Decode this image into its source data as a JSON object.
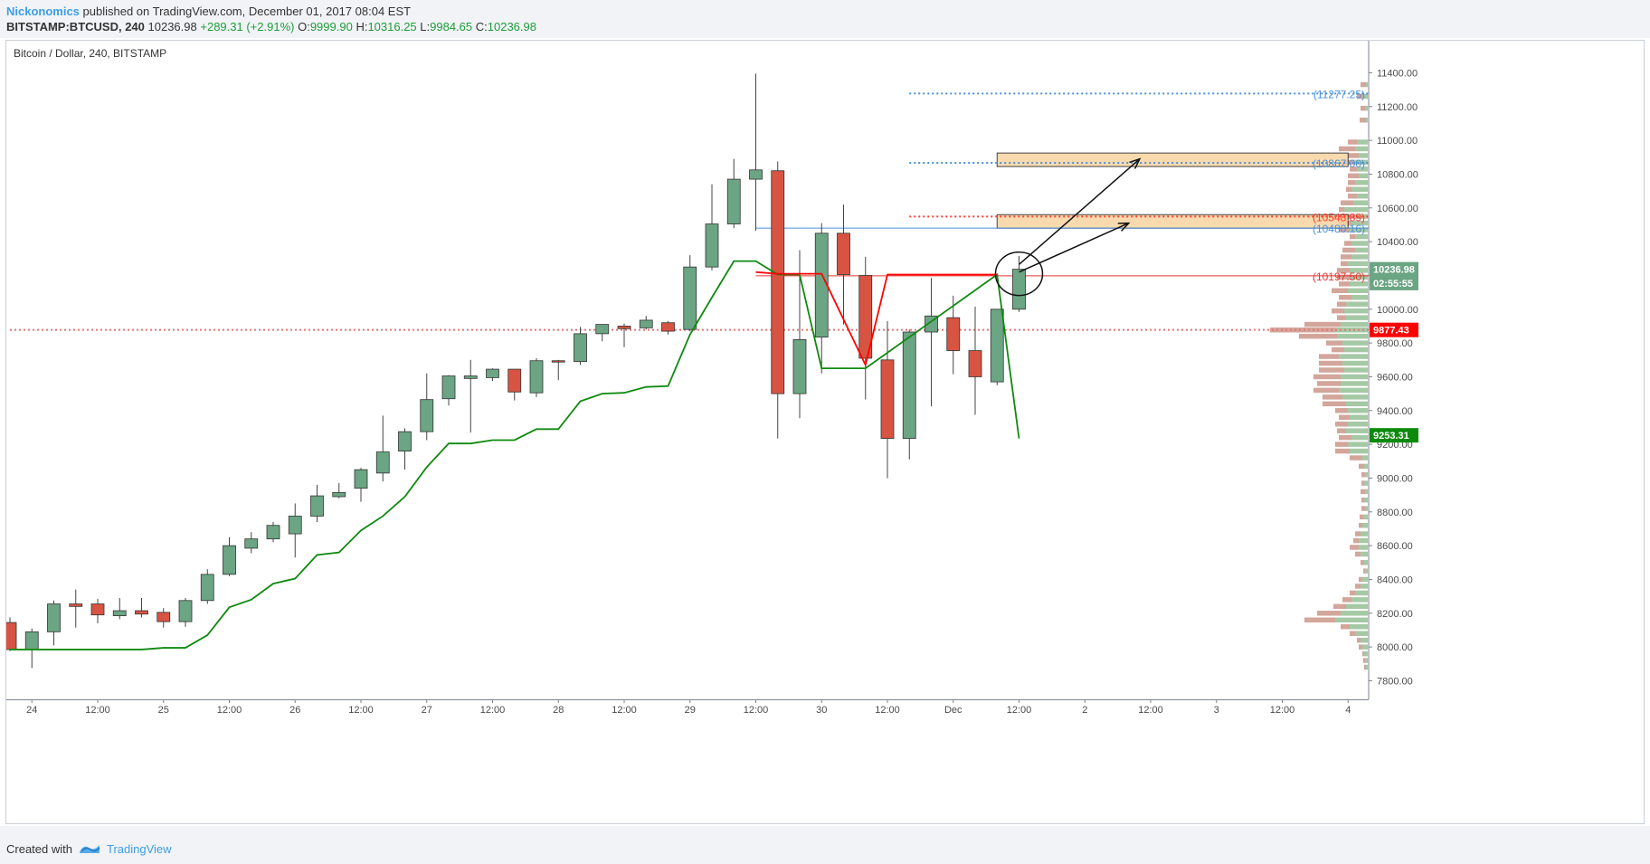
{
  "header": {
    "author": "Nickonomics",
    "published": " published on TradingView.com, December 01, 2017 08:04 EST",
    "symbol": "BITSTAMP:BTCUSD, 240",
    "last": "10236.98",
    "change": "+289.31 (+2.91%)",
    "o_label": "O:",
    "o_value": "9999.90",
    "h_label": "H:",
    "h_value": "10316.25",
    "l_label": "L:",
    "l_value": "9984.65",
    "c_label": "C:",
    "c_value": "10236.98"
  },
  "footer": {
    "created_with": "Created with",
    "brand": "TradingView"
  },
  "colors": {
    "up": "#6ba583",
    "down": "#d75442",
    "trail": "#0f8a0f",
    "stop": "#ff0000",
    "blue_level": "#5b9bd5",
    "zone_fill": "#f9d4a0",
    "volume_up": "#8fbc8f",
    "volume_down": "#c08070"
  },
  "chart_data": {
    "type": "candlestick",
    "title": "Bitcoin / Dollar, 240, BITSTAMP",
    "y_ticks": [
      "11400.00",
      "11200.00",
      "11000.00",
      "10800.00",
      "10600.00",
      "10400.00",
      "10200.00",
      "10000.00",
      "9800.00",
      "9600.00",
      "9400.00",
      "9200.00",
      "9000.00",
      "8800.00",
      "8600.00",
      "8400.00",
      "8200.00",
      "8000.00",
      "7800.00"
    ],
    "ylim": [
      7690,
      11590
    ],
    "x_ticks": [
      "24",
      "12:00",
      "25",
      "12:00",
      "26",
      "12:00",
      "27",
      "12:00",
      "28",
      "12:00",
      "29",
      "12:00",
      "30",
      "12:00",
      "Dec",
      "12:00",
      "2",
      "12:00",
      "3",
      "12:00",
      "4"
    ],
    "x_tick_start_bar": 1,
    "x_tick_step_bars": 3,
    "bar_count": 62,
    "candles": [
      {
        "o": 8145,
        "h": 8175,
        "l": 7975,
        "c": 7985
      },
      {
        "o": 7985,
        "h": 8110,
        "l": 7875,
        "c": 8090
      },
      {
        "o": 8090,
        "h": 8275,
        "l": 8010,
        "c": 8255
      },
      {
        "o": 8255,
        "h": 8340,
        "l": 8115,
        "c": 8240
      },
      {
        "o": 8255,
        "h": 8285,
        "l": 8140,
        "c": 8190
      },
      {
        "o": 8185,
        "h": 8290,
        "l": 8165,
        "c": 8215
      },
      {
        "o": 8215,
        "h": 8290,
        "l": 8175,
        "c": 8195
      },
      {
        "o": 8205,
        "h": 8230,
        "l": 8115,
        "c": 8150
      },
      {
        "o": 8150,
        "h": 8290,
        "l": 8120,
        "c": 8275
      },
      {
        "o": 8275,
        "h": 8460,
        "l": 8255,
        "c": 8430
      },
      {
        "o": 8430,
        "h": 8650,
        "l": 8420,
        "c": 8600
      },
      {
        "o": 8585,
        "h": 8680,
        "l": 8555,
        "c": 8640
      },
      {
        "o": 8640,
        "h": 8740,
        "l": 8620,
        "c": 8720
      },
      {
        "o": 8670,
        "h": 8850,
        "l": 8530,
        "c": 8775
      },
      {
        "o": 8775,
        "h": 8960,
        "l": 8740,
        "c": 8895
      },
      {
        "o": 8890,
        "h": 8970,
        "l": 8880,
        "c": 8915
      },
      {
        "o": 8940,
        "h": 9060,
        "l": 8860,
        "c": 9050
      },
      {
        "o": 9030,
        "h": 9370,
        "l": 8980,
        "c": 9155
      },
      {
        "o": 9160,
        "h": 9295,
        "l": 9050,
        "c": 9275
      },
      {
        "o": 9275,
        "h": 9620,
        "l": 9225,
        "c": 9465
      },
      {
        "o": 9470,
        "h": 9610,
        "l": 9430,
        "c": 9605
      },
      {
        "o": 9590,
        "h": 9700,
        "l": 9270,
        "c": 9605
      },
      {
        "o": 9595,
        "h": 9650,
        "l": 9575,
        "c": 9645
      },
      {
        "o": 9645,
        "h": 9645,
        "l": 9460,
        "c": 9510
      },
      {
        "o": 9505,
        "h": 9710,
        "l": 9480,
        "c": 9695
      },
      {
        "o": 9695,
        "h": 9700,
        "l": 9580,
        "c": 9690
      },
      {
        "o": 9690,
        "h": 9895,
        "l": 9670,
        "c": 9855
      },
      {
        "o": 9855,
        "h": 9910,
        "l": 9810,
        "c": 9910
      },
      {
        "o": 9900,
        "h": 9915,
        "l": 9775,
        "c": 9885
      },
      {
        "o": 9890,
        "h": 9960,
        "l": 9880,
        "c": 9935
      },
      {
        "o": 9920,
        "h": 9930,
        "l": 9850,
        "c": 9870
      },
      {
        "o": 9880,
        "h": 10320,
        "l": 9870,
        "c": 10250
      },
      {
        "o": 10250,
        "h": 10740,
        "l": 10230,
        "c": 10505
      },
      {
        "o": 10505,
        "h": 10890,
        "l": 10480,
        "c": 10770
      },
      {
        "o": 10770,
        "h": 11395,
        "l": 10465,
        "c": 10825
      },
      {
        "o": 10820,
        "h": 10875,
        "l": 9235,
        "c": 9500
      },
      {
        "o": 9500,
        "h": 10350,
        "l": 9355,
        "c": 9820
      },
      {
        "o": 9835,
        "h": 10510,
        "l": 9620,
        "c": 10450
      },
      {
        "o": 10450,
        "h": 10620,
        "l": 9910,
        "c": 10205
      },
      {
        "o": 10200,
        "h": 10310,
        "l": 9465,
        "c": 9710
      },
      {
        "o": 9700,
        "h": 9930,
        "l": 9000,
        "c": 9235
      },
      {
        "o": 9235,
        "h": 9880,
        "l": 9110,
        "c": 9865
      },
      {
        "o": 9865,
        "h": 10185,
        "l": 9425,
        "c": 9960
      },
      {
        "o": 9950,
        "h": 10080,
        "l": 9615,
        "c": 9755
      },
      {
        "o": 9755,
        "h": 10015,
        "l": 9375,
        "c": 9600
      },
      {
        "o": 9570,
        "h": 9985,
        "l": 9550,
        "c": 10000
      },
      {
        "o": 10000,
        "h": 10316,
        "l": 9984,
        "c": 10237
      }
    ],
    "trailing_stop_long": [
      [
        0,
        7985
      ],
      [
        1,
        7985
      ],
      [
        2,
        7985
      ],
      [
        3,
        7985
      ],
      [
        4,
        7985
      ],
      [
        5,
        7985
      ],
      [
        6,
        7985
      ],
      [
        7,
        7995
      ],
      [
        8,
        7995
      ],
      [
        9,
        8070
      ],
      [
        10,
        8235
      ],
      [
        11,
        8280
      ],
      [
        12,
        8375
      ],
      [
        13,
        8405
      ],
      [
        14,
        8545
      ],
      [
        15,
        8560
      ],
      [
        16,
        8690
      ],
      [
        17,
        8775
      ],
      [
        18,
        8890
      ],
      [
        19,
        9065
      ],
      [
        20,
        9205
      ],
      [
        21,
        9205
      ],
      [
        22,
        9225
      ],
      [
        23,
        9225
      ],
      [
        24,
        9290
      ],
      [
        25,
        9290
      ],
      [
        26,
        9455
      ],
      [
        27,
        9500
      ],
      [
        28,
        9505
      ],
      [
        29,
        9540
      ],
      [
        30,
        9545
      ],
      [
        31,
        9850
      ],
      [
        32,
        10070
      ],
      [
        33,
        10285
      ],
      [
        34,
        10285
      ],
      [
        35,
        10205
      ],
      [
        36,
        10205
      ],
      [
        37,
        9650
      ],
      [
        38,
        9650
      ],
      [
        39,
        9650
      ],
      [
        45,
        10205
      ],
      [
        46,
        9235
      ]
    ],
    "trailing_stop_short": [
      [
        34,
        10220
      ],
      [
        35,
        10210
      ],
      [
        37,
        10210
      ],
      [
        39,
        9670
      ],
      [
        40,
        10205
      ],
      [
        45,
        10205
      ]
    ],
    "levels": [
      {
        "label": "(11277.25)",
        "value": 11277.25,
        "from_bar": 41,
        "color": "#4a90d9",
        "style": "dotted"
      },
      {
        "label": "(10867.00)",
        "value": 10867,
        "from_bar": 41,
        "color": "#4a90d9",
        "style": "dotted"
      },
      {
        "label": "(10548.89)",
        "value": 10548.89,
        "from_bar": 41,
        "color": "#ff3b30",
        "style": "dotted"
      },
      {
        "label": "(10480.16)",
        "value": 10480.16,
        "from_bar": 34,
        "color": "#4a90d9",
        "style": "solid"
      },
      {
        "label": "(10197.50)",
        "value": 10197.5,
        "from_bar": 34,
        "color": "#e53935",
        "style": "solid"
      },
      {
        "label": "",
        "value": 9877.43,
        "from_bar": 0,
        "color": "#e57373",
        "style": "dotted"
      }
    ],
    "zones": [
      {
        "top": 10925,
        "bottom": 10845,
        "from_bar": 45,
        "to_bar": 61
      },
      {
        "top": 10560,
        "bottom": 10480,
        "from_bar": 45,
        "to_bar": 61
      }
    ],
    "arrows": [
      {
        "x1": 46.0,
        "y1": 10265,
        "x2": 51.5,
        "y2": 10890
      },
      {
        "x1": 46.0,
        "y1": 10220,
        "x2": 51.0,
        "y2": 10510
      }
    ],
    "circle": {
      "bar": 46,
      "value": 10210
    },
    "price_tags": [
      {
        "text": "10236.98",
        "value": 10236.98,
        "color": "#6ba583"
      },
      {
        "text": "02:55:55",
        "value": 10155,
        "color": "#6ba583"
      },
      {
        "text": "9877.43",
        "value": 9877.43,
        "color": "#ff0000"
      },
      {
        "text": "9253.31",
        "value": 9253.31,
        "color": "#0c8a0c"
      }
    ],
    "volume_profile": [
      {
        "p": 11330,
        "u": 2,
        "d": 6
      },
      {
        "p": 11260,
        "u": 4,
        "d": 8
      },
      {
        "p": 11190,
        "u": 3,
        "d": 5
      },
      {
        "p": 11120,
        "u": 2,
        "d": 7
      },
      {
        "p": 10990,
        "u": 12,
        "d": 10
      },
      {
        "p": 10950,
        "u": 14,
        "d": 18
      },
      {
        "p": 10910,
        "u": 10,
        "d": 12
      },
      {
        "p": 10870,
        "u": 16,
        "d": 14
      },
      {
        "p": 10830,
        "u": 12,
        "d": 8
      },
      {
        "p": 10790,
        "u": 10,
        "d": 12
      },
      {
        "p": 10750,
        "u": 14,
        "d": 8
      },
      {
        "p": 10710,
        "u": 18,
        "d": 6
      },
      {
        "p": 10670,
        "u": 12,
        "d": 10
      },
      {
        "p": 10630,
        "u": 16,
        "d": 14
      },
      {
        "p": 10590,
        "u": 26,
        "d": 6
      },
      {
        "p": 10550,
        "u": 14,
        "d": 16
      },
      {
        "p": 10510,
        "u": 18,
        "d": 14
      },
      {
        "p": 10470,
        "u": 20,
        "d": 12
      },
      {
        "p": 10430,
        "u": 14,
        "d": 6
      },
      {
        "p": 10390,
        "u": 18,
        "d": 8
      },
      {
        "p": 10350,
        "u": 14,
        "d": 14
      },
      {
        "p": 10310,
        "u": 18,
        "d": 12
      },
      {
        "p": 10270,
        "u": 22,
        "d": 8
      },
      {
        "p": 10230,
        "u": 20,
        "d": 14
      },
      {
        "p": 10190,
        "u": 18,
        "d": 16
      },
      {
        "p": 10150,
        "u": 20,
        "d": 12
      },
      {
        "p": 10110,
        "u": 22,
        "d": 18
      },
      {
        "p": 10070,
        "u": 18,
        "d": 14
      },
      {
        "p": 10030,
        "u": 24,
        "d": 10
      },
      {
        "p": 9990,
        "u": 26,
        "d": 14
      },
      {
        "p": 9950,
        "u": 24,
        "d": 10
      },
      {
        "p": 9910,
        "u": 30,
        "d": 40
      },
      {
        "p": 9877,
        "u": 36,
        "d": 72
      },
      {
        "p": 9840,
        "u": 34,
        "d": 42
      },
      {
        "p": 9800,
        "u": 28,
        "d": 18
      },
      {
        "p": 9760,
        "u": 26,
        "d": 14
      },
      {
        "p": 9720,
        "u": 32,
        "d": 22
      },
      {
        "p": 9680,
        "u": 28,
        "d": 26
      },
      {
        "p": 9640,
        "u": 26,
        "d": 28
      },
      {
        "p": 9600,
        "u": 30,
        "d": 30
      },
      {
        "p": 9560,
        "u": 30,
        "d": 26
      },
      {
        "p": 9520,
        "u": 32,
        "d": 28
      },
      {
        "p": 9480,
        "u": 28,
        "d": 22
      },
      {
        "p": 9440,
        "u": 24,
        "d": 26
      },
      {
        "p": 9400,
        "u": 22,
        "d": 14
      },
      {
        "p": 9360,
        "u": 20,
        "d": 12
      },
      {
        "p": 9320,
        "u": 22,
        "d": 14
      },
      {
        "p": 9280,
        "u": 24,
        "d": 10
      },
      {
        "p": 9240,
        "u": 18,
        "d": 14
      },
      {
        "p": 9200,
        "u": 22,
        "d": 14
      },
      {
        "p": 9160,
        "u": 20,
        "d": 16
      },
      {
        "p": 9120,
        "u": 6,
        "d": 14
      },
      {
        "p": 9070,
        "u": 4,
        "d": 6
      },
      {
        "p": 9020,
        "u": 3,
        "d": 4
      },
      {
        "p": 8970,
        "u": 4,
        "d": 3
      },
      {
        "p": 8920,
        "u": 3,
        "d": 5
      },
      {
        "p": 8870,
        "u": 4,
        "d": 3
      },
      {
        "p": 8820,
        "u": 3,
        "d": 4
      },
      {
        "p": 8770,
        "u": 5,
        "d": 4
      },
      {
        "p": 8720,
        "u": 6,
        "d": 4
      },
      {
        "p": 8670,
        "u": 8,
        "d": 6
      },
      {
        "p": 8630,
        "u": 10,
        "d": 6
      },
      {
        "p": 8590,
        "u": 10,
        "d": 10
      },
      {
        "p": 8550,
        "u": 8,
        "d": 6
      },
      {
        "p": 8500,
        "u": 4,
        "d": 4
      },
      {
        "p": 8450,
        "u": 3,
        "d": 2
      },
      {
        "p": 8400,
        "u": 6,
        "d": 4
      },
      {
        "p": 8360,
        "u": 8,
        "d": 6
      },
      {
        "p": 8320,
        "u": 14,
        "d": 6
      },
      {
        "p": 8280,
        "u": 18,
        "d": 10
      },
      {
        "p": 8240,
        "u": 24,
        "d": 14
      },
      {
        "p": 8200,
        "u": 30,
        "d": 26
      },
      {
        "p": 8160,
        "u": 36,
        "d": 34
      },
      {
        "p": 8120,
        "u": 20,
        "d": 10
      },
      {
        "p": 8080,
        "u": 14,
        "d": 6
      },
      {
        "p": 8040,
        "u": 8,
        "d": 4
      },
      {
        "p": 8000,
        "u": 6,
        "d": 4
      },
      {
        "p": 7960,
        "u": 4,
        "d": 2
      },
      {
        "p": 7920,
        "u": 3,
        "d": 2
      },
      {
        "p": 7880,
        "u": 2,
        "d": 2
      }
    ]
  }
}
